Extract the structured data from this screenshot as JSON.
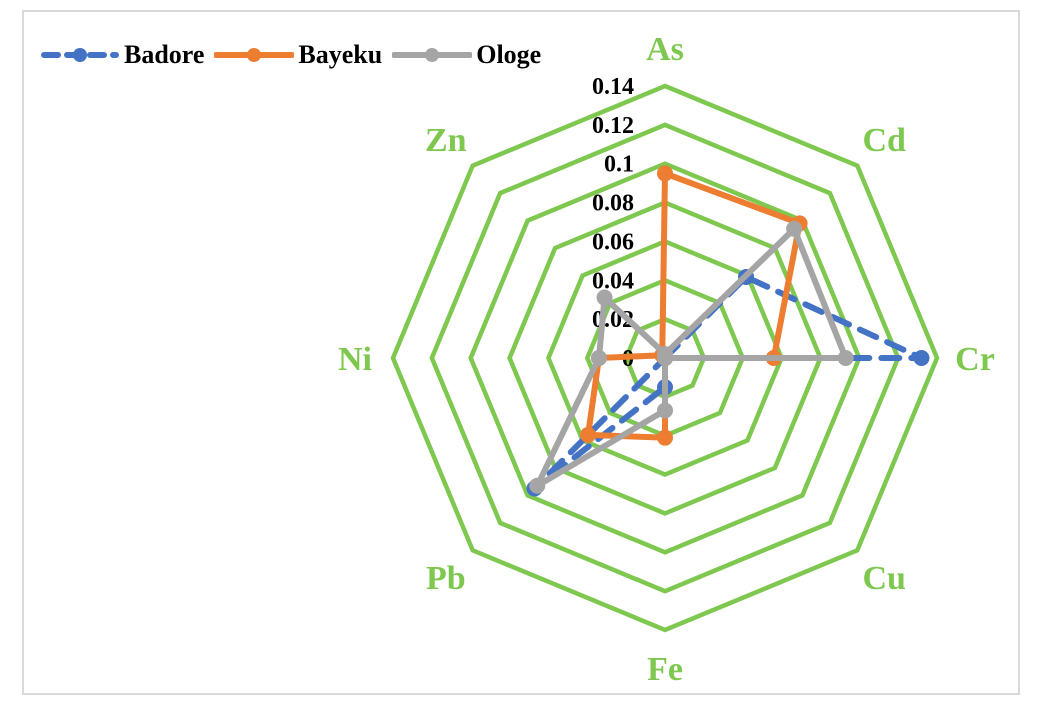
{
  "chart_data": {
    "type": "radar",
    "title": "",
    "categories": [
      "As",
      "Cd",
      "Cr",
      "Cu",
      "Fe",
      "Pb",
      "Ni",
      "Zn"
    ],
    "series": [
      {
        "name": "Badore",
        "color": "#4472c4",
        "style": "dashed",
        "values": [
          0.0,
          0.059,
          0.132,
          0.0,
          0.015,
          0.095,
          0.0,
          0.0
        ]
      },
      {
        "name": "Bayeku",
        "color": "#ed7d31",
        "style": "solid",
        "values": [
          0.095,
          0.098,
          0.056,
          0.0,
          0.041,
          0.056,
          0.034,
          0.002
        ]
      },
      {
        "name": "Ologe",
        "color": "#a5a5a5",
        "style": "solid",
        "values": [
          0.002,
          0.094,
          0.093,
          0.0,
          0.027,
          0.093,
          0.034,
          0.044
        ]
      }
    ],
    "radial_ticks": [
      "0",
      "0.02",
      "0.04",
      "0.06",
      "0.08",
      "0.1",
      "0.12",
      "0.14"
    ],
    "rlim": [
      0,
      0.14
    ],
    "grid_color": "#7ec850",
    "axis_label_color": "#7ec850",
    "legend_position": "top-left"
  },
  "legend": {
    "items": [
      {
        "label": "Badore",
        "color": "#4472c4"
      },
      {
        "label": "Bayeku",
        "color": "#ed7d31"
      },
      {
        "label": "Ologe",
        "color": "#a5a5a5"
      }
    ]
  }
}
